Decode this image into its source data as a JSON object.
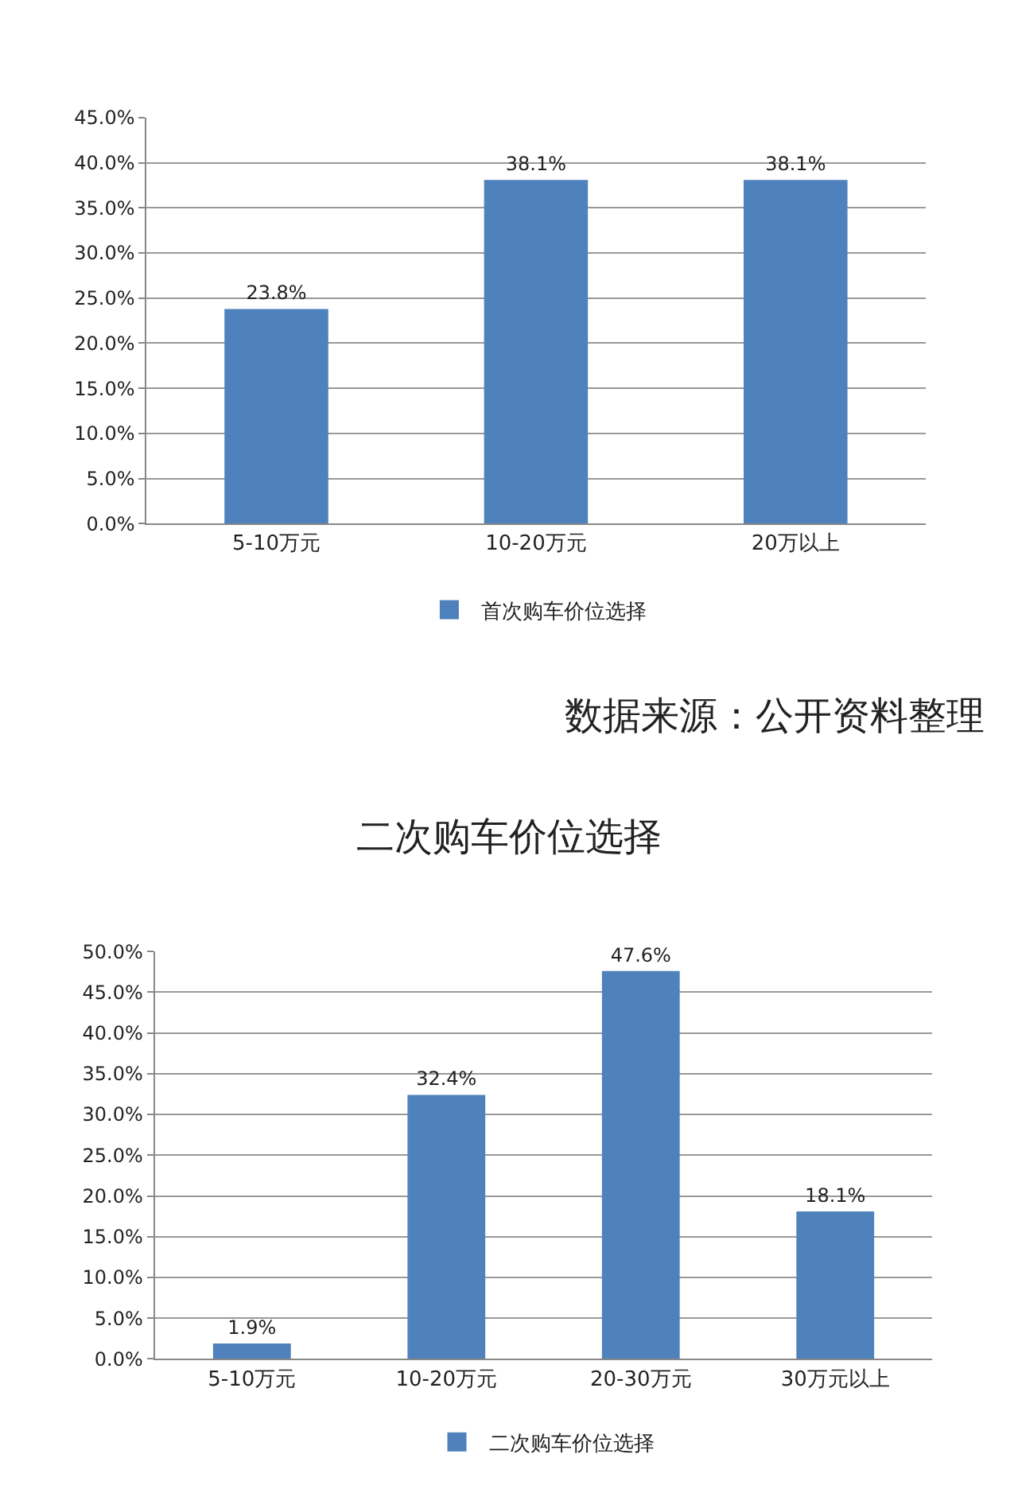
{
  "chart_data": [
    {
      "type": "bar",
      "categories": [
        "5-10万元",
        "10-20万元",
        "20万以上"
      ],
      "series": [
        {
          "name": "首次购车价位选择",
          "color": "#4f81bd",
          "values": [
            23.8,
            38.1,
            38.1
          ],
          "value_labels": [
            "23.8%",
            "38.1%",
            "38.1%"
          ]
        }
      ],
      "ylim": [
        0,
        45
      ],
      "yticks": [
        {
          "value": 0,
          "label": "0.0%"
        },
        {
          "value": 5,
          "label": "5.0%"
        },
        {
          "value": 10,
          "label": "10.0%"
        },
        {
          "value": 15,
          "label": "15.0%"
        },
        {
          "value": 20,
          "label": "20.0%"
        },
        {
          "value": 25,
          "label": "25.0%"
        },
        {
          "value": 30,
          "label": "30.0%"
        },
        {
          "value": 35,
          "label": "35.0%"
        },
        {
          "value": 40,
          "label": "40.0%"
        },
        {
          "value": 45,
          "label": "45.0%"
        }
      ],
      "grid": "y",
      "legend": "bottom",
      "annotations": [
        "数据来源：公开资料整理"
      ]
    },
    {
      "type": "bar",
      "title": "二次购车价位选择",
      "categories": [
        "5-10万元",
        "10-20万元",
        "20-30万元",
        "30万元以上"
      ],
      "series": [
        {
          "name": "二次购车价位选择",
          "color": "#4f81bd",
          "values": [
            1.9,
            32.4,
            47.6,
            18.1
          ],
          "value_labels": [
            "1.9%",
            "32.4%",
            "47.6%",
            "18.1%"
          ]
        }
      ],
      "ylim": [
        0,
        50
      ],
      "yticks": [
        {
          "value": 0,
          "label": "0.0%"
        },
        {
          "value": 5,
          "label": "5.0%"
        },
        {
          "value": 10,
          "label": "10.0%"
        },
        {
          "value": 15,
          "label": "15.0%"
        },
        {
          "value": 20,
          "label": "20.0%"
        },
        {
          "value": 25,
          "label": "25.0%"
        },
        {
          "value": 30,
          "label": "30.0%"
        },
        {
          "value": 35,
          "label": "35.0%"
        },
        {
          "value": 40,
          "label": "40.0%"
        },
        {
          "value": 45,
          "label": "45.0%"
        },
        {
          "value": 50,
          "label": "50.0%"
        }
      ],
      "grid": "y",
      "legend": "bottom"
    }
  ]
}
